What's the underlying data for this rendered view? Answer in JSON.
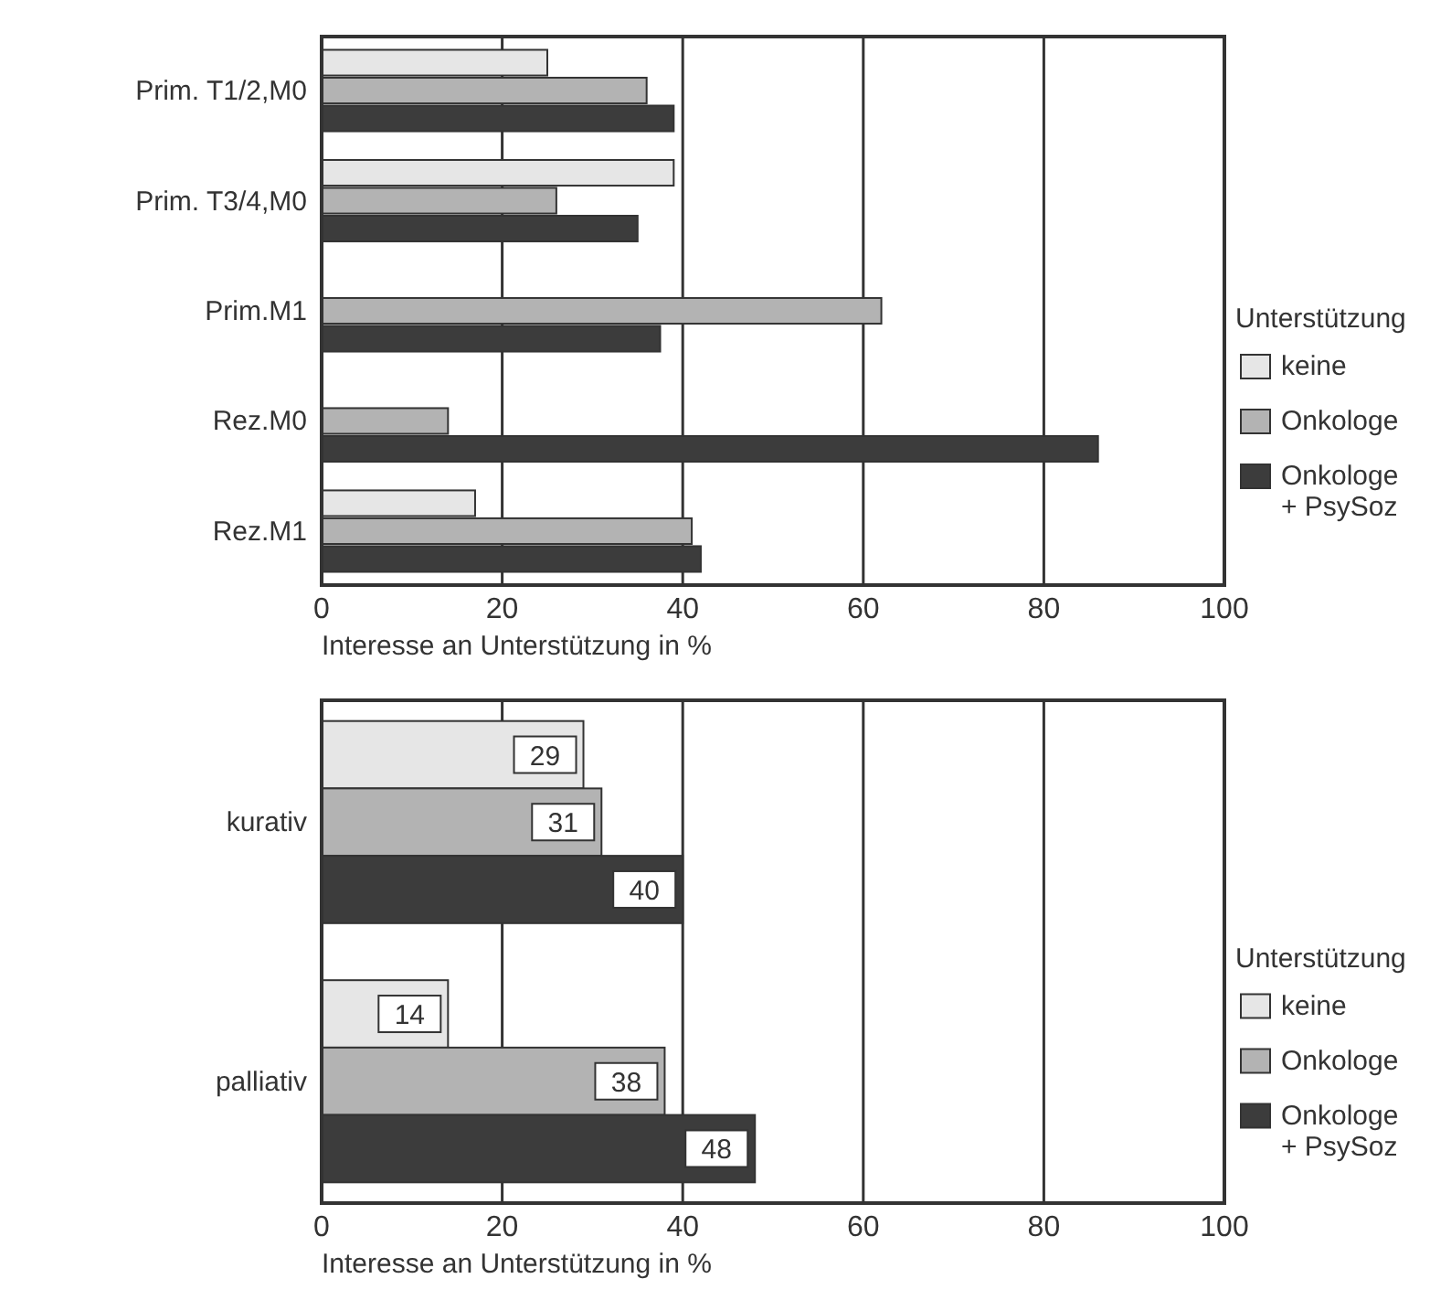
{
  "chart_data": [
    {
      "type": "bar",
      "orientation": "horizontal",
      "categories": [
        "Prim. T1/2,M0",
        "Prim. T3/4,M0",
        "Prim.M1",
        "Rez.M0",
        "Rez.M1"
      ],
      "xlabel": "Interesse an Unterstützung in %",
      "xlim": [
        0,
        100
      ],
      "xticks": [
        0,
        20,
        40,
        60,
        80,
        100
      ],
      "grid": "x",
      "legend": "right",
      "legend_title": "Unterstützung",
      "series": [
        {
          "name": "keine",
          "color": "#e6e6e6",
          "values": [
            25,
            39,
            null,
            null,
            17
          ]
        },
        {
          "name": "Onkologe",
          "color": "#b3b3b3",
          "values": [
            36,
            26,
            62,
            14,
            41
          ]
        },
        {
          "name": "Onkologe + PsySoz",
          "color": "#3c3c3c",
          "values": [
            39,
            35,
            37.5,
            86,
            42
          ]
        }
      ]
    },
    {
      "type": "bar",
      "orientation": "horizontal",
      "categories": [
        "kurativ",
        "palliativ"
      ],
      "xlabel": "Interesse an Unterstützung in %",
      "xlim": [
        0,
        100
      ],
      "xticks": [
        0,
        20,
        40,
        60,
        80,
        100
      ],
      "grid": "x",
      "legend": "right",
      "legend_title": "Unterstützung",
      "data_labels": true,
      "series": [
        {
          "name": "keine",
          "color": "#e6e6e6",
          "values": [
            29,
            14
          ]
        },
        {
          "name": "Onkologe",
          "color": "#b3b3b3",
          "values": [
            31,
            38
          ]
        },
        {
          "name": "Onkologe + PsySoz",
          "color": "#3c3c3c",
          "values": [
            40,
            48
          ]
        }
      ]
    }
  ]
}
